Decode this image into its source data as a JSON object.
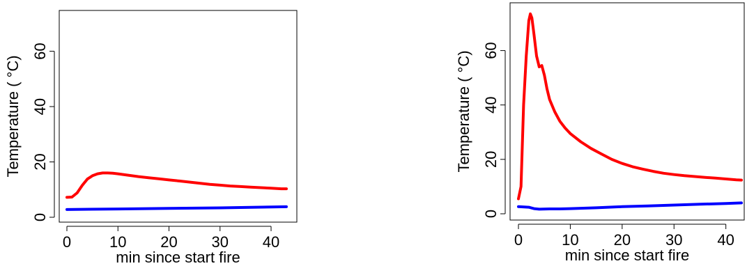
{
  "chart_data": [
    {
      "type": "line",
      "title": "",
      "xlabel": "min since start fire",
      "ylabel": "Temperature ( °C)",
      "xlim": [
        0,
        43
      ],
      "ylim": [
        0,
        75
      ],
      "xticks": [
        0,
        10,
        20,
        30,
        40
      ],
      "yticks": [
        0,
        20,
        40,
        60
      ],
      "grid": false,
      "series": [
        {
          "color": "#ff0000",
          "x": [
            0,
            1,
            2,
            3,
            4,
            5,
            6,
            7,
            8,
            9,
            10,
            12,
            14,
            16,
            18,
            20,
            22,
            24,
            26,
            28,
            30,
            32,
            34,
            36,
            38,
            40,
            42,
            43
          ],
          "values": [
            7.2,
            7.3,
            8.8,
            11.5,
            13.8,
            15.0,
            15.7,
            16.0,
            16.0,
            15.9,
            15.7,
            15.2,
            14.7,
            14.3,
            13.9,
            13.5,
            13.1,
            12.7,
            12.3,
            11.9,
            11.6,
            11.3,
            11.1,
            10.9,
            10.7,
            10.5,
            10.3,
            10.3
          ]
        },
        {
          "color": "#0000ff",
          "x": [
            0,
            10,
            20,
            30,
            40,
            43
          ],
          "values": [
            2.8,
            3.0,
            3.2,
            3.4,
            3.7,
            3.8
          ]
        }
      ]
    },
    {
      "type": "line",
      "title": "",
      "xlabel": "min since start fire",
      "ylabel": "Temperature ( °C)",
      "xlim": [
        0,
        43
      ],
      "ylim": [
        0,
        75
      ],
      "xticks": [
        0,
        10,
        20,
        30,
        40
      ],
      "yticks": [
        0,
        20,
        40,
        60
      ],
      "grid": false,
      "series": [
        {
          "color": "#ff0000",
          "x": [
            0,
            0.5,
            1,
            1.5,
            2,
            2.3,
            2.6,
            3,
            3.5,
            4,
            4.5,
            5,
            5.5,
            6,
            7,
            8,
            9,
            10,
            12,
            14,
            16,
            18,
            20,
            22,
            24,
            26,
            28,
            30,
            32,
            34,
            36,
            38,
            40,
            42,
            43
          ],
          "values": [
            5.5,
            10,
            40,
            58,
            71,
            73.5,
            72,
            66,
            58,
            54,
            54.5,
            51,
            46,
            42,
            37.5,
            34,
            31.5,
            29.5,
            26.5,
            24,
            22,
            20,
            18.5,
            17.3,
            16.4,
            15.6,
            14.9,
            14.4,
            14.0,
            13.7,
            13.4,
            13.1,
            12.8,
            12.5,
            12.4
          ]
        },
        {
          "color": "#0000ff",
          "x": [
            0,
            2,
            3,
            4,
            6,
            8,
            10,
            15,
            20,
            25,
            30,
            35,
            40,
            43
          ],
          "values": [
            2.6,
            2.4,
            1.9,
            1.7,
            1.8,
            1.8,
            1.9,
            2.2,
            2.6,
            2.9,
            3.2,
            3.5,
            3.8,
            4.0
          ]
        }
      ]
    }
  ]
}
